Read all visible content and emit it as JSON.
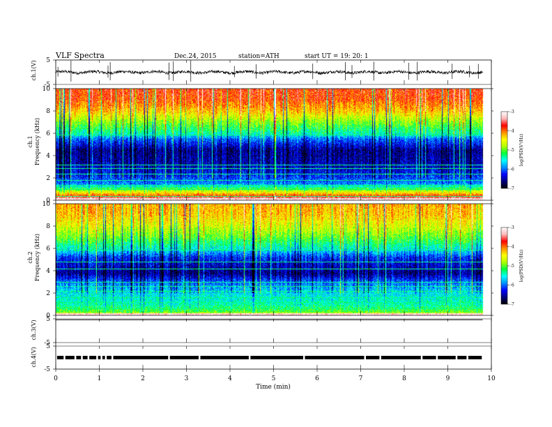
{
  "header": {
    "title": "VLF  Spectra",
    "date": "Dec.24, 2015",
    "station": "station=ATH",
    "start": "start  UT  =    19: 20: 1"
  },
  "chart_data": [
    {
      "type": "line",
      "name": "ch1-waveform",
      "ylabel": "ch.1(V)",
      "yticks": [
        "5",
        "-5"
      ],
      "ylim": [
        -5,
        5
      ],
      "xlim": [
        0,
        10
      ],
      "data_end_min": 9.8,
      "baseline_v": 0.0,
      "spikes_at_min": [
        0.05,
        0.35,
        1.2,
        1.25,
        2.6,
        2.7,
        3.1,
        4.1,
        4.6,
        5.9,
        6.65,
        6.8,
        7.3,
        8.1,
        8.3,
        9.1,
        9.5,
        9.7
      ]
    },
    {
      "type": "heatmap",
      "name": "ch1-spectrogram",
      "ylabel": "ch.1\nFrequency (kHz)",
      "ylabel_lines": [
        "ch.1",
        "Frequency  (kHz)"
      ],
      "yticks": [
        "0",
        "2",
        "4",
        "6",
        "8",
        "10"
      ],
      "ylim": [
        0,
        10
      ],
      "xlim": [
        0,
        10
      ],
      "data_end_min": 9.8,
      "zlim": [
        -7,
        -3
      ],
      "colorbar_label": "log(PSD(V²/Hz)",
      "colorbar_ticks": [
        "-3",
        "-4",
        "-5",
        "-6",
        "-7"
      ],
      "colormap": [
        "#000000",
        "#00007a",
        "#0000ff",
        "#0090ff",
        "#00ffff",
        "#00ff40",
        "#b0ff00",
        "#ffff00",
        "#ff9000",
        "#ff0000",
        "#ffb8b8",
        "#ffffff"
      ],
      "band_profile_log_psd": [
        {
          "f_khz": 0.0,
          "value": -3.2
        },
        {
          "f_khz": 0.3,
          "value": -3.6
        },
        {
          "f_khz": 0.8,
          "value": -4.6
        },
        {
          "f_khz": 1.5,
          "value": -5.9
        },
        {
          "f_khz": 2.5,
          "value": -6.3
        },
        {
          "f_khz": 3.5,
          "value": -6.5
        },
        {
          "f_khz": 4.5,
          "value": -6.6
        },
        {
          "f_khz": 5.5,
          "value": -6.0
        },
        {
          "f_khz": 6.0,
          "value": -5.4
        },
        {
          "f_khz": 7.0,
          "value": -4.9
        },
        {
          "f_khz": 8.0,
          "value": -4.3
        },
        {
          "f_khz": 9.0,
          "value": -3.9
        },
        {
          "f_khz": 10.0,
          "value": -3.8
        }
      ],
      "lines_khz": [
        0.4,
        1.0,
        1.4,
        1.8,
        2.4,
        2.9,
        3.2,
        5.9
      ]
    },
    {
      "type": "heatmap",
      "name": "ch2-spectrogram",
      "ylabel_lines": [
        "ch.2",
        "Frequency  (kHz)"
      ],
      "yticks": [
        "0",
        "2",
        "4",
        "6",
        "8",
        "10"
      ],
      "ylim": [
        0,
        10
      ],
      "xlim": [
        0,
        10
      ],
      "data_end_min": 9.8,
      "zlim": [
        -7,
        -3
      ],
      "colorbar_label": "log(PSD(V²/Hz)",
      "colorbar_ticks": [
        "-3",
        "-4",
        "-5",
        "-6",
        "-7"
      ],
      "band_profile_log_psd": [
        {
          "f_khz": 0.0,
          "value": -3.2
        },
        {
          "f_khz": 0.3,
          "value": -5.0
        },
        {
          "f_khz": 1.0,
          "value": -5.4
        },
        {
          "f_khz": 2.0,
          "value": -5.6
        },
        {
          "f_khz": 3.0,
          "value": -6.0
        },
        {
          "f_khz": 3.8,
          "value": -6.6
        },
        {
          "f_khz": 4.5,
          "value": -6.4
        },
        {
          "f_khz": 5.2,
          "value": -6.2
        },
        {
          "f_khz": 6.0,
          "value": -5.5
        },
        {
          "f_khz": 7.0,
          "value": -5.0
        },
        {
          "f_khz": 8.0,
          "value": -4.6
        },
        {
          "f_khz": 9.0,
          "value": -4.3
        },
        {
          "f_khz": 10.0,
          "value": -4.2
        }
      ],
      "lines_khz": [
        0.6,
        1.2,
        1.6,
        2.2,
        2.6,
        3.0,
        4.2,
        4.8,
        5.9
      ]
    },
    {
      "type": "line",
      "name": "ch3-waveform",
      "ylabel": "ch.3(V)",
      "yticks": [
        "5",
        "-5"
      ],
      "ylim": [
        -5,
        5
      ],
      "xlim": [
        0,
        10
      ],
      "data_end_min": 9.8,
      "value_v": 4.6
    },
    {
      "type": "line",
      "name": "ch4-waveform",
      "ylabel": "ch.4(V)",
      "yticks": [
        "5",
        "-5"
      ],
      "ylim": [
        -5,
        5
      ],
      "xlim": [
        0,
        10
      ],
      "data_start_min": 0.03,
      "data_end_min": 9.8,
      "value_v": 0.0,
      "gaps_at_min": [
        0.2,
        0.45,
        0.6,
        0.75,
        0.95,
        1.05,
        1.15,
        1.3,
        2.6,
        3.3,
        4.45,
        5.7,
        7.1,
        7.45,
        8.4,
        8.75,
        9.2,
        9.45
      ]
    }
  ],
  "x_axis": {
    "label": "Time  (min)",
    "ticks": [
      "0",
      "1",
      "2",
      "3",
      "4",
      "5",
      "6",
      "7",
      "8",
      "9",
      "10"
    ],
    "xlim": [
      0,
      10
    ]
  }
}
